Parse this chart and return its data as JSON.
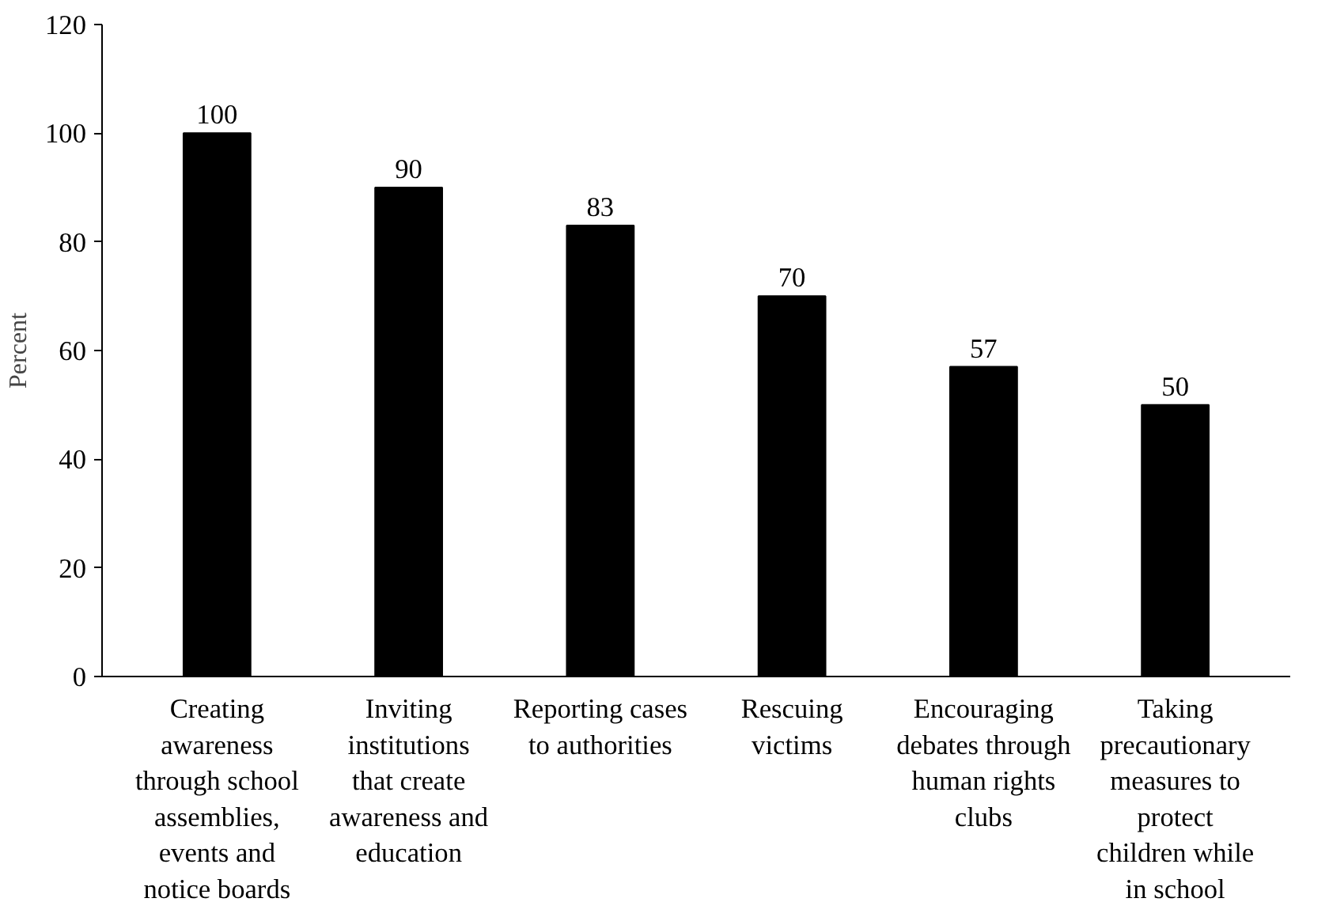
{
  "chart_data": {
    "type": "bar",
    "ylabel": "Percent",
    "categories": [
      "Creating awareness through school assemblies, events and notice boards",
      "Inviting institutions that create awareness and education",
      "Reporting cases to authorities",
      "Rescuing victims",
      "Encouraging debates through human rights clubs",
      "Taking precautionary measures to protect children while in school"
    ],
    "values": [
      100,
      90,
      83,
      70,
      57,
      50
    ],
    "color": "#000000",
    "data_labels": true,
    "ylim": [
      0,
      120
    ],
    "yticks": [
      0,
      20,
      40,
      60,
      80,
      100,
      120
    ],
    "grid": false
  }
}
